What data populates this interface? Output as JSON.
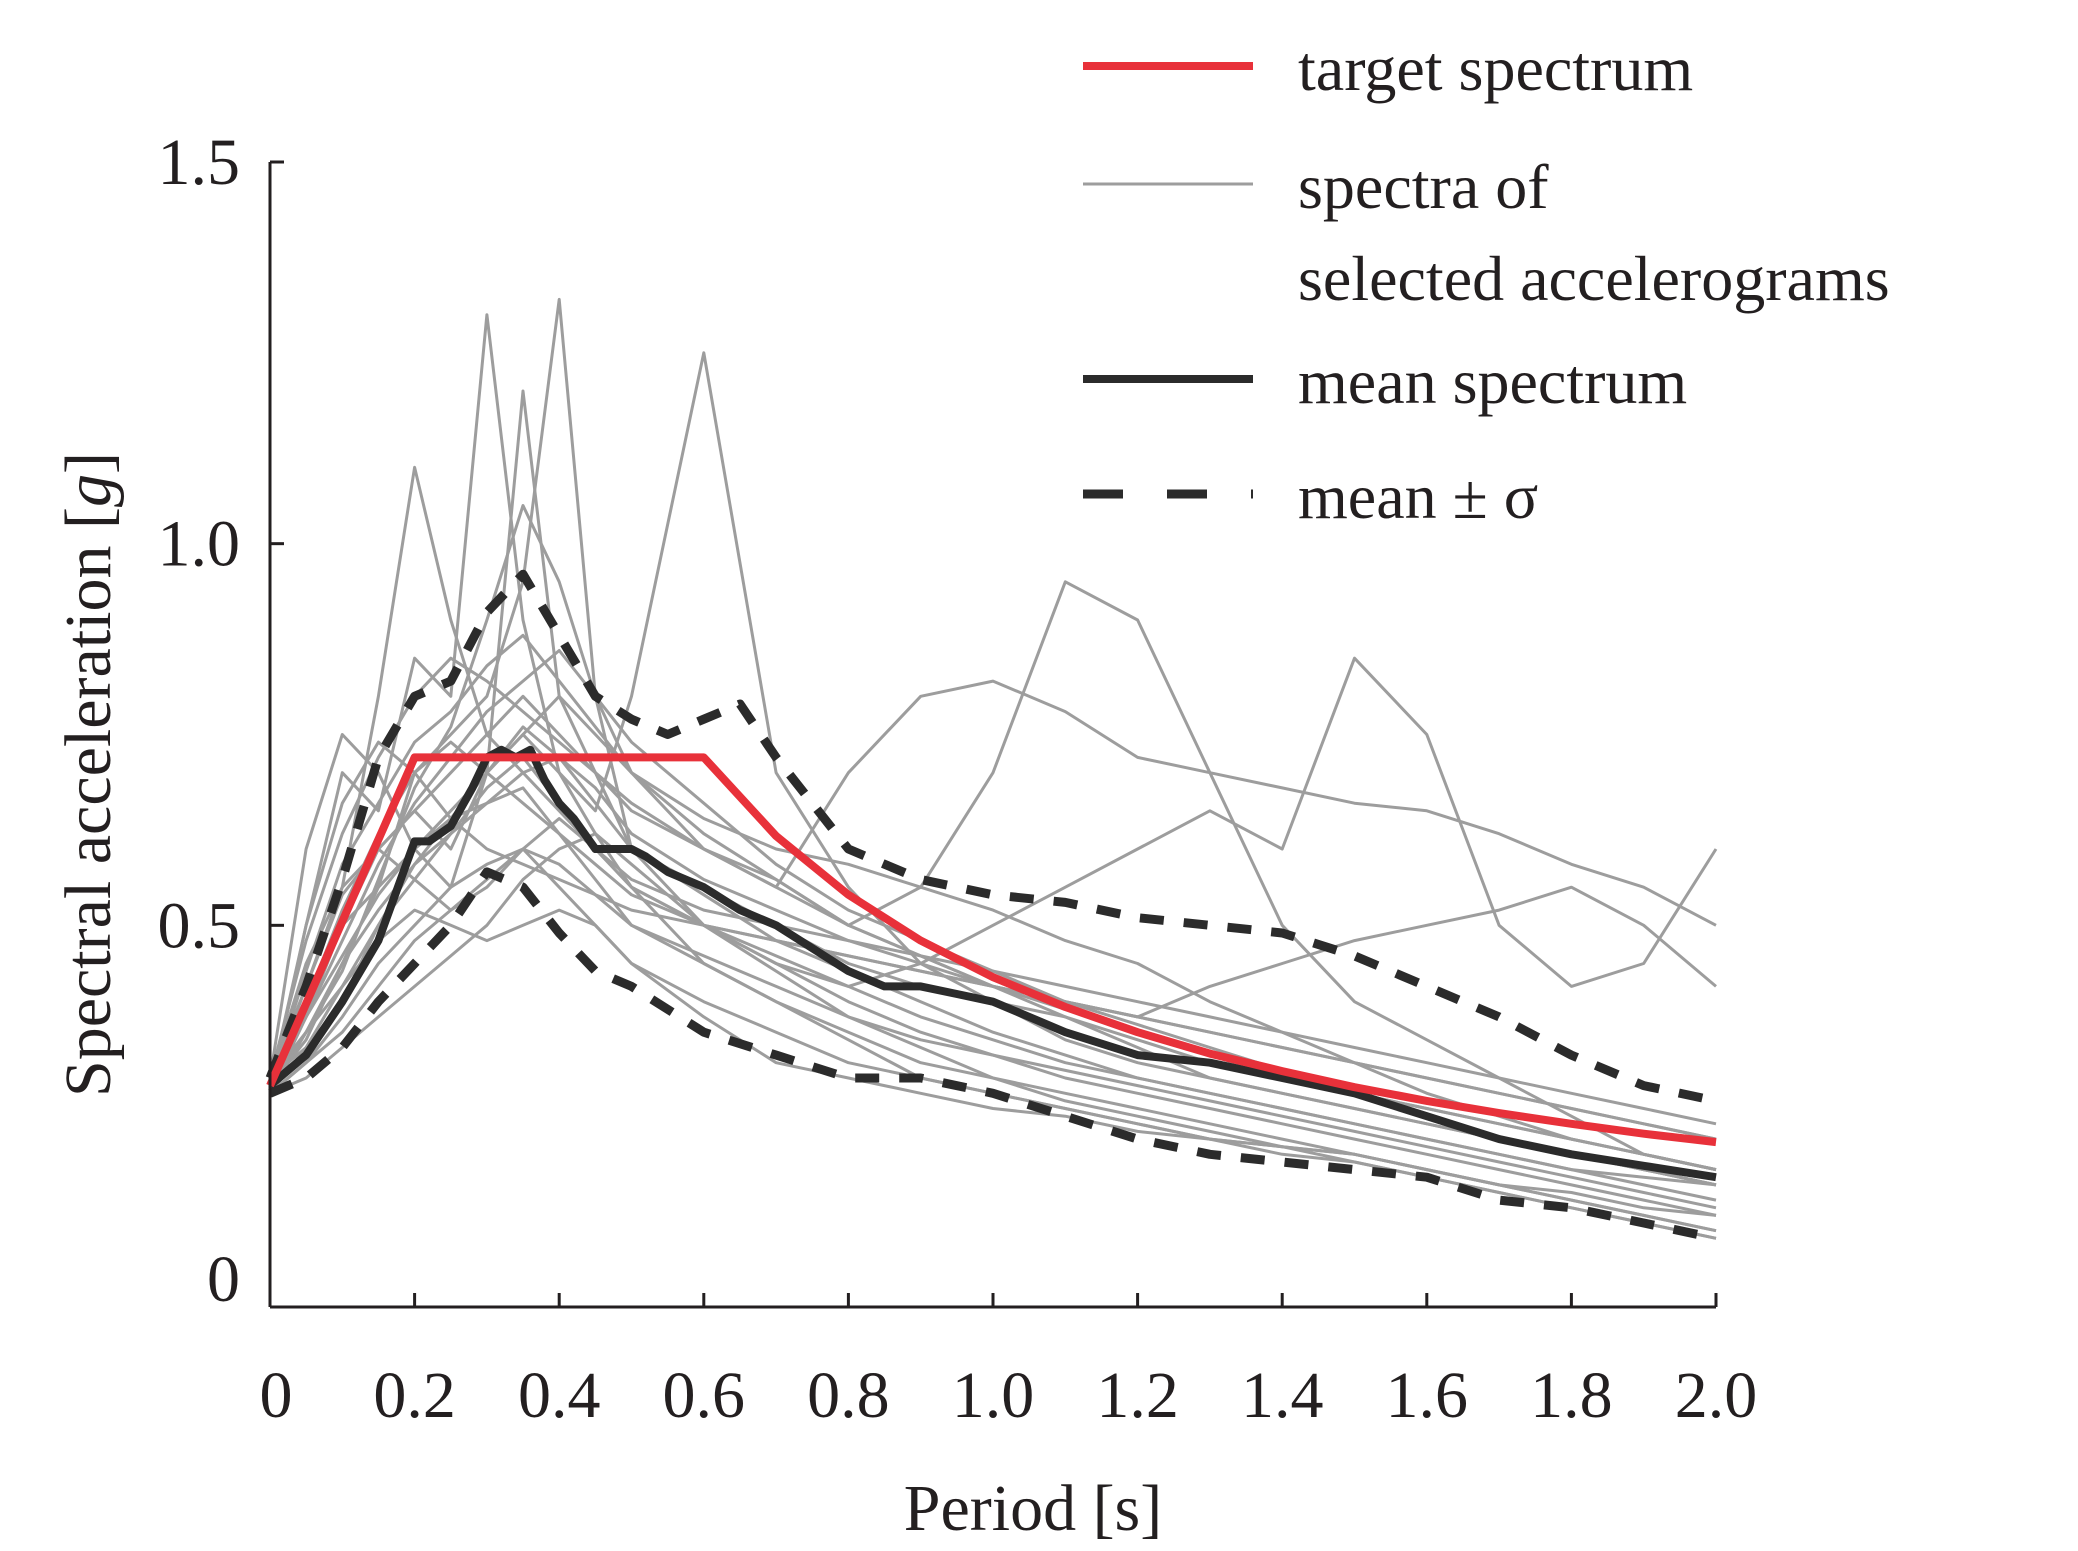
{
  "chart_data": {
    "type": "line",
    "title": "",
    "xlabel": "Period [s]",
    "ylabel_parts": [
      "Spectral acceleration [",
      "g",
      "]"
    ],
    "xlim": [
      0,
      2.0
    ],
    "ylim": [
      0,
      1.5
    ],
    "x_ticks": [
      0,
      0.2,
      0.4,
      0.6,
      0.8,
      1.0,
      1.2,
      1.4,
      1.6,
      1.8,
      2.0
    ],
    "x_tick_labels": [
      "0",
      "0.2",
      "0.4",
      "0.6",
      "0.8",
      "1.0",
      "1.2",
      "1.4",
      "1.6",
      "1.8",
      "2.0"
    ],
    "y_ticks": [
      0,
      0.5,
      1.0,
      1.5
    ],
    "y_tick_labels": [
      "0",
      "0.5",
      "1.0",
      "1.5"
    ],
    "grid": false,
    "legend": {
      "placement": "top-right",
      "entries": [
        {
          "series": "target",
          "lines": [
            "target spectrum"
          ]
        },
        {
          "series": "records",
          "lines": [
            "spectra of",
            "selected accelerograms"
          ]
        },
        {
          "series": "mean",
          "lines": [
            "mean spectrum"
          ]
        },
        {
          "series": "band",
          "lines": [
            "mean ± σ"
          ]
        }
      ]
    },
    "series": [
      {
        "name": "target spectrum",
        "key": "target",
        "color": "#e8313a",
        "width": 8,
        "dash": "",
        "x": [
          0,
          0.2,
          0.6,
          0.7,
          0.8,
          0.9,
          1.0,
          1.1,
          1.2,
          1.3,
          1.4,
          1.5,
          1.6,
          1.7,
          1.8,
          1.9,
          2.0
        ],
        "y": [
          0.29,
          0.72,
          0.72,
          0.617,
          0.54,
          0.48,
          0.432,
          0.393,
          0.36,
          0.332,
          0.309,
          0.288,
          0.27,
          0.254,
          0.24,
          0.227,
          0.216
        ]
      },
      {
        "name": "mean spectrum",
        "key": "mean",
        "color": "#2b2b2b",
        "width": 8,
        "dash": "",
        "x": [
          0,
          0.05,
          0.1,
          0.15,
          0.2,
          0.22,
          0.25,
          0.28,
          0.3,
          0.32,
          0.34,
          0.36,
          0.38,
          0.4,
          0.42,
          0.45,
          0.48,
          0.5,
          0.52,
          0.55,
          0.6,
          0.65,
          0.7,
          0.8,
          0.85,
          0.9,
          0.95,
          1.0,
          1.05,
          1.1,
          1.2,
          1.3,
          1.4,
          1.5,
          1.6,
          1.7,
          1.8,
          1.9,
          2.0
        ],
        "y": [
          0.29,
          0.33,
          0.4,
          0.48,
          0.61,
          0.61,
          0.63,
          0.68,
          0.72,
          0.73,
          0.72,
          0.73,
          0.69,
          0.66,
          0.64,
          0.6,
          0.6,
          0.6,
          0.59,
          0.57,
          0.55,
          0.52,
          0.5,
          0.44,
          0.42,
          0.42,
          0.41,
          0.4,
          0.38,
          0.36,
          0.33,
          0.32,
          0.3,
          0.28,
          0.25,
          0.22,
          0.2,
          0.185,
          0.17
        ]
      },
      {
        "name": "mean + σ",
        "key": "band",
        "color": "#2b2b2b",
        "width": 9,
        "dash": "24 20",
        "x": [
          0,
          0.05,
          0.1,
          0.15,
          0.2,
          0.25,
          0.3,
          0.35,
          0.4,
          0.45,
          0.5,
          0.55,
          0.6,
          0.65,
          0.7,
          0.8,
          0.9,
          1.0,
          1.1,
          1.2,
          1.3,
          1.4,
          1.5,
          1.6,
          1.7,
          1.8,
          1.9,
          2.0
        ],
        "y": [
          0.3,
          0.42,
          0.56,
          0.72,
          0.8,
          0.82,
          0.91,
          0.96,
          0.88,
          0.8,
          0.77,
          0.75,
          0.77,
          0.79,
          0.72,
          0.6,
          0.56,
          0.54,
          0.53,
          0.51,
          0.5,
          0.49,
          0.46,
          0.42,
          0.38,
          0.33,
          0.29,
          0.27
        ]
      },
      {
        "name": "mean − σ",
        "key": "band",
        "color": "#2b2b2b",
        "width": 9,
        "dash": "24 20",
        "x": [
          0,
          0.05,
          0.1,
          0.15,
          0.2,
          0.25,
          0.3,
          0.35,
          0.4,
          0.45,
          0.5,
          0.6,
          0.7,
          0.8,
          0.9,
          1.0,
          1.1,
          1.2,
          1.3,
          1.4,
          1.5,
          1.6,
          1.7,
          1.8,
          1.9,
          2.0
        ],
        "y": [
          0.28,
          0.3,
          0.34,
          0.4,
          0.45,
          0.5,
          0.57,
          0.55,
          0.49,
          0.44,
          0.42,
          0.36,
          0.33,
          0.3,
          0.3,
          0.28,
          0.25,
          0.22,
          0.2,
          0.19,
          0.18,
          0.17,
          0.14,
          0.13,
          0.11,
          0.09
        ]
      }
    ],
    "records": {
      "name": "spectra of selected accelerograms",
      "key": "records",
      "color": "#9d9d9d",
      "width": 3,
      "x": [
        0,
        0.05,
        0.1,
        0.15,
        0.2,
        0.25,
        0.3,
        0.35,
        0.4,
        0.45,
        0.5,
        0.6,
        0.7,
        0.8,
        0.9,
        1.0,
        1.1,
        1.2,
        1.3,
        1.4,
        1.5,
        1.6,
        1.7,
        1.8,
        1.9,
        2.0
      ],
      "curves": [
        [
          0.29,
          0.42,
          0.55,
          0.8,
          1.1,
          0.9,
          0.75,
          0.7,
          0.65,
          0.6,
          0.55,
          0.5,
          0.45,
          0.4,
          0.36,
          0.33,
          0.3,
          0.28,
          0.26,
          0.24,
          0.22,
          0.2,
          0.18,
          0.16,
          0.14,
          0.12
        ],
        [
          0.28,
          0.5,
          0.7,
          0.65,
          0.85,
          0.8,
          1.3,
          0.9,
          0.7,
          0.62,
          0.55,
          0.45,
          0.4,
          0.36,
          0.32,
          0.3,
          0.28,
          0.26,
          0.24,
          0.22,
          0.2,
          0.18,
          0.16,
          0.15,
          0.13,
          0.12
        ],
        [
          0.3,
          0.6,
          0.75,
          0.7,
          0.6,
          0.55,
          0.7,
          1.2,
          0.8,
          0.7,
          0.6,
          0.55,
          0.5,
          0.45,
          0.42,
          0.4,
          0.38,
          0.34,
          0.3,
          0.28,
          0.26,
          0.24,
          0.22,
          0.2,
          0.18,
          0.16
        ],
        [
          0.29,
          0.35,
          0.45,
          0.55,
          0.7,
          0.75,
          0.8,
          0.95,
          1.32,
          0.8,
          0.6,
          0.5,
          0.45,
          0.42,
          0.38,
          0.35,
          0.32,
          0.3,
          0.28,
          0.26,
          0.24,
          0.22,
          0.2,
          0.18,
          0.17,
          0.16
        ],
        [
          0.28,
          0.38,
          0.5,
          0.6,
          0.65,
          0.6,
          0.7,
          0.75,
          0.7,
          0.65,
          0.8,
          1.25,
          0.7,
          0.55,
          0.45,
          0.4,
          0.35,
          0.32,
          0.3,
          0.28,
          0.26,
          0.24,
          0.22,
          0.2,
          0.18,
          0.16
        ],
        [
          0.29,
          0.4,
          0.5,
          0.55,
          0.6,
          0.65,
          0.7,
          0.75,
          0.8,
          0.75,
          0.7,
          0.6,
          0.55,
          0.5,
          0.55,
          0.7,
          0.95,
          0.9,
          0.7,
          0.5,
          0.4,
          0.35,
          0.3,
          0.25,
          0.2,
          0.18
        ],
        [
          0.3,
          0.45,
          0.55,
          0.6,
          0.65,
          0.7,
          0.75,
          0.8,
          0.75,
          0.7,
          0.65,
          0.6,
          0.55,
          0.7,
          0.8,
          0.82,
          0.78,
          0.72,
          0.7,
          0.68,
          0.66,
          0.65,
          0.62,
          0.58,
          0.55,
          0.5
        ],
        [
          0.28,
          0.36,
          0.45,
          0.52,
          0.58,
          0.62,
          0.68,
          0.72,
          0.66,
          0.6,
          0.55,
          0.5,
          0.46,
          0.42,
          0.45,
          0.5,
          0.55,
          0.6,
          0.65,
          0.6,
          0.85,
          0.75,
          0.5,
          0.42,
          0.45,
          0.6
        ],
        [
          0.29,
          0.38,
          0.46,
          0.54,
          0.6,
          0.64,
          0.66,
          0.7,
          0.72,
          0.68,
          0.62,
          0.56,
          0.52,
          0.48,
          0.45,
          0.42,
          0.4,
          0.38,
          0.42,
          0.45,
          0.48,
          0.5,
          0.52,
          0.55,
          0.5,
          0.42
        ],
        [
          0.3,
          0.34,
          0.4,
          0.5,
          0.56,
          0.62,
          0.66,
          0.68,
          0.62,
          0.56,
          0.5,
          0.45,
          0.4,
          0.35,
          0.3,
          0.28,
          0.26,
          0.24,
          0.22,
          0.21,
          0.2,
          0.18,
          0.16,
          0.14,
          0.12,
          0.1
        ],
        [
          0.28,
          0.32,
          0.38,
          0.45,
          0.5,
          0.55,
          0.58,
          0.6,
          0.55,
          0.5,
          0.45,
          0.4,
          0.36,
          0.32,
          0.3,
          0.28,
          0.26,
          0.24,
          0.22,
          0.2,
          0.19,
          0.17,
          0.15,
          0.13,
          0.11,
          0.09
        ],
        [
          0.29,
          0.36,
          0.42,
          0.48,
          0.52,
          0.5,
          0.48,
          0.5,
          0.52,
          0.5,
          0.45,
          0.38,
          0.32,
          0.3,
          0.28,
          0.26,
          0.25,
          0.23,
          0.22,
          0.21,
          0.2,
          0.18,
          0.16,
          0.14,
          0.12,
          0.1
        ],
        [
          0.3,
          0.48,
          0.62,
          0.72,
          0.8,
          0.85,
          0.82,
          0.78,
          0.74,
          0.7,
          0.66,
          0.6,
          0.56,
          0.5,
          0.46,
          0.42,
          0.38,
          0.35,
          0.32,
          0.3,
          0.28,
          0.26,
          0.24,
          0.22,
          0.2,
          0.18
        ],
        [
          0.28,
          0.3,
          0.34,
          0.38,
          0.42,
          0.46,
          0.5,
          0.56,
          0.6,
          0.62,
          0.58,
          0.5,
          0.44,
          0.38,
          0.34,
          0.3,
          0.27,
          0.25,
          0.23,
          0.21,
          0.19,
          0.17,
          0.15,
          0.13,
          0.11,
          0.09
        ],
        [
          0.29,
          0.44,
          0.58,
          0.66,
          0.74,
          0.78,
          0.84,
          0.88,
          0.82,
          0.76,
          0.7,
          0.64,
          0.6,
          0.58,
          0.55,
          0.52,
          0.48,
          0.45,
          0.4,
          0.36,
          0.32,
          0.28,
          0.25,
          0.22,
          0.2,
          0.18
        ],
        [
          0.3,
          0.4,
          0.52,
          0.62,
          0.7,
          0.74,
          0.7,
          0.66,
          0.62,
          0.58,
          0.54,
          0.5,
          0.48,
          0.46,
          0.44,
          0.42,
          0.4,
          0.38,
          0.36,
          0.34,
          0.32,
          0.3,
          0.28,
          0.26,
          0.24,
          0.22
        ],
        [
          0.28,
          0.34,
          0.42,
          0.5,
          0.58,
          0.64,
          0.7,
          0.76,
          0.72,
          0.66,
          0.6,
          0.54,
          0.48,
          0.44,
          0.4,
          0.36,
          0.33,
          0.3,
          0.28,
          0.26,
          0.24,
          0.22,
          0.2,
          0.18,
          0.16,
          0.14
        ],
        [
          0.29,
          0.5,
          0.66,
          0.74,
          0.7,
          0.64,
          0.6,
          0.58,
          0.56,
          0.54,
          0.5,
          0.46,
          0.42,
          0.38,
          0.35,
          0.33,
          0.31,
          0.29,
          0.27,
          0.25,
          0.23,
          0.21,
          0.19,
          0.17,
          0.15,
          0.13
        ],
        [
          0.3,
          0.36,
          0.44,
          0.56,
          0.68,
          0.76,
          0.9,
          1.05,
          0.95,
          0.8,
          0.7,
          0.62,
          0.56,
          0.5,
          0.46,
          0.42,
          0.39,
          0.36,
          0.33,
          0.3,
          0.28,
          0.26,
          0.24,
          0.22,
          0.2,
          0.18
        ],
        [
          0.28,
          0.32,
          0.36,
          0.42,
          0.48,
          0.52,
          0.56,
          0.6,
          0.58,
          0.54,
          0.52,
          0.5,
          0.48,
          0.46,
          0.44,
          0.42,
          0.4,
          0.38,
          0.36,
          0.34,
          0.32,
          0.3,
          0.28,
          0.26,
          0.24,
          0.22
        ],
        [
          0.29,
          0.38,
          0.48,
          0.58,
          0.66,
          0.72,
          0.78,
          0.82,
          0.86,
          0.8,
          0.74,
          0.66,
          0.58,
          0.52,
          0.48,
          0.44,
          0.4,
          0.37,
          0.34,
          0.31,
          0.28,
          0.25,
          0.22,
          0.2,
          0.18,
          0.16
        ],
        [
          0.3,
          0.42,
          0.54,
          0.6,
          0.56,
          0.52,
          0.55,
          0.6,
          0.64,
          0.6,
          0.56,
          0.52,
          0.5,
          0.48,
          0.46,
          0.44,
          0.42,
          0.4,
          0.38,
          0.36,
          0.34,
          0.32,
          0.3,
          0.28,
          0.26,
          0.24
        ]
      ]
    }
  }
}
